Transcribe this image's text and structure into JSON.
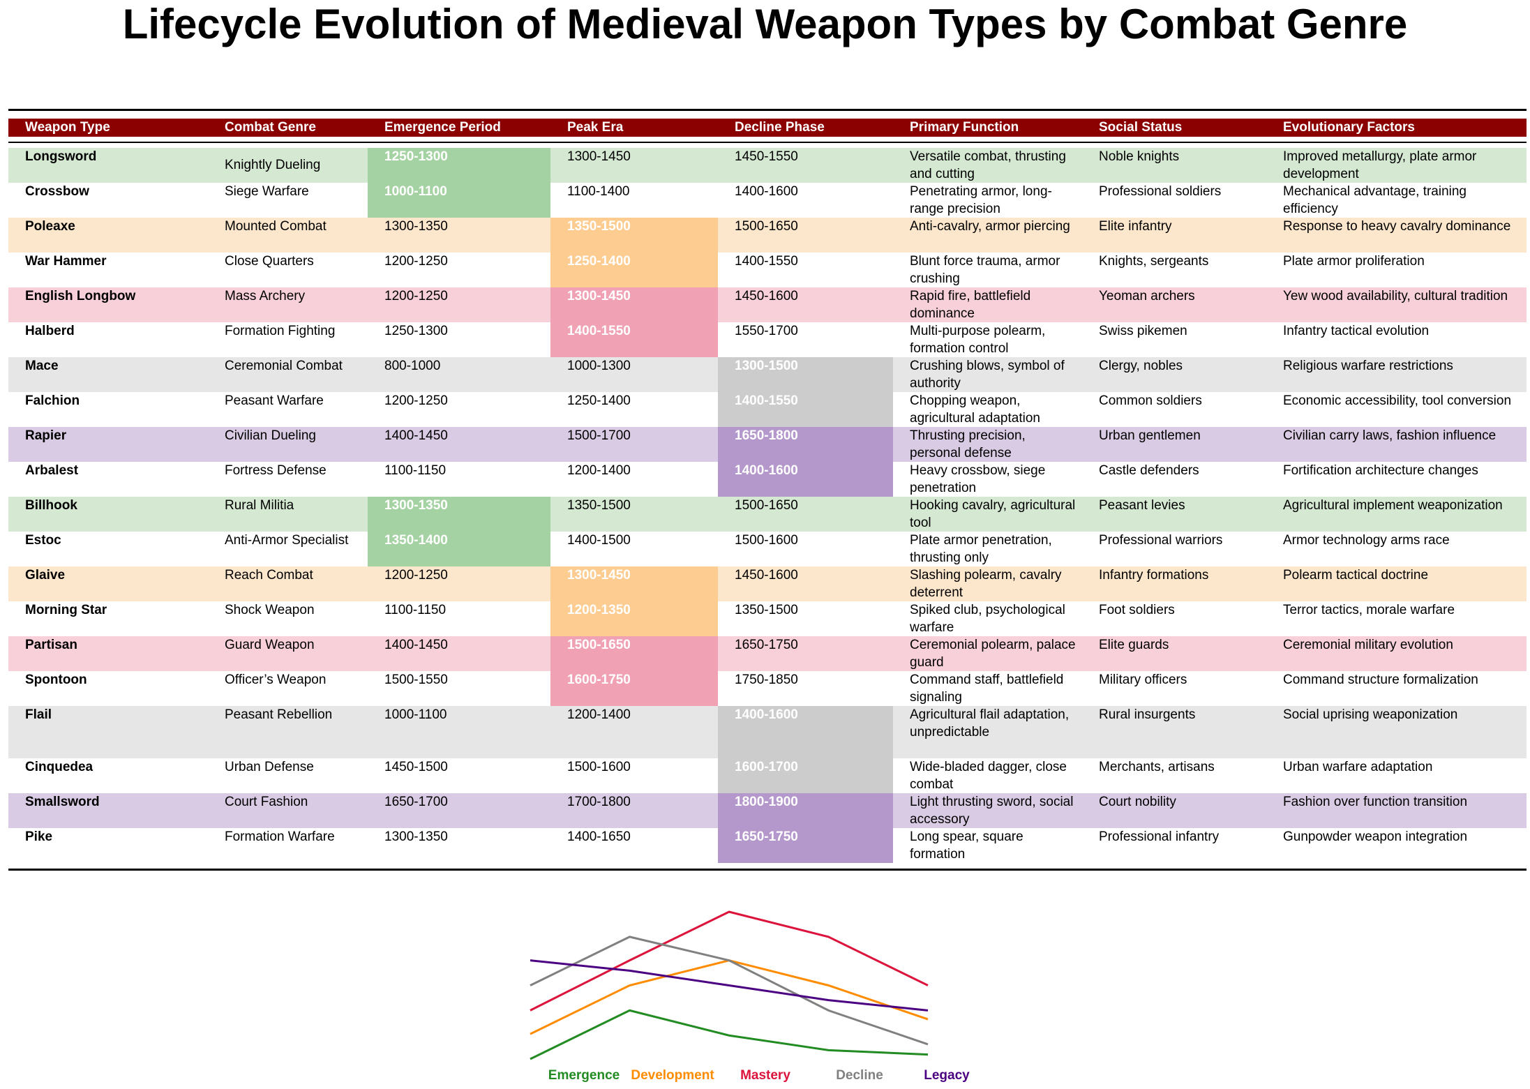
{
  "title": "Lifecycle Evolution of Medieval Weapon Types by Combat Genre",
  "columns": [
    "Weapon Type",
    "Combat Genre",
    "Emergence Period",
    "Peak Era",
    "Decline Phase",
    "Primary Function",
    "Social Status",
    "Evolutionary Factors"
  ],
  "colors": {
    "header": "#8b0000",
    "green_light": "#d4e8d2",
    "green_dark": "#a5d2a3",
    "orange_light": "#fde7cc",
    "orange_dark": "#fdcc91",
    "pink_light": "#f7d0d9",
    "pink_dark": "#f0a1b3",
    "gray_light": "#e6e6e6",
    "gray_dark": "#cccccc",
    "purple_light": "#dacbe4",
    "purple_dark": "#b497cb"
  },
  "rows": [
    {
      "weapon": "Longsword",
      "genre": "Knightly Dueling",
      "emergence": "1250-1300",
      "peak": "1300-1450",
      "decline": "1450-1550",
      "function": "Versatile combat, thrusting and cutting",
      "status": "Noble knights",
      "factors": "Improved metallurgy, plate armor development"
    },
    {
      "weapon": "Crossbow",
      "genre": "Siege Warfare",
      "emergence": "1000-1100",
      "peak": "1100-1400",
      "decline": "1400-1600",
      "function": "Penetrating armor, long-range precision",
      "status": "Professional soldiers",
      "factors": "Mechanical advantage, training efficiency"
    },
    {
      "weapon": "Poleaxe",
      "genre": "Mounted Combat",
      "emergence": "1300-1350",
      "peak": "1350-1500",
      "decline": "1500-1650",
      "function": "Anti-cavalry, armor piercing",
      "status": "Elite infantry",
      "factors": "Response to heavy cavalry dominance"
    },
    {
      "weapon": "War Hammer",
      "genre": "Close Quarters",
      "emergence": "1200-1250",
      "peak": "1250-1400",
      "decline": "1400-1550",
      "function": "Blunt force trauma, armor crushing",
      "status": "Knights, sergeants",
      "factors": "Plate armor proliferation"
    },
    {
      "weapon": "English Longbow",
      "genre": "Mass Archery",
      "emergence": "1200-1250",
      "peak": "1300-1450",
      "decline": "1450-1600",
      "function": "Rapid fire, battlefield dominance",
      "status": "Yeoman archers",
      "factors": "Yew wood availability, cultural tradition"
    },
    {
      "weapon": "Halberd",
      "genre": "Formation Fighting",
      "emergence": "1250-1300",
      "peak": "1400-1550",
      "decline": "1550-1700",
      "function": "Multi-purpose polearm, formation control",
      "status": "Swiss pikemen",
      "factors": "Infantry tactical evolution"
    },
    {
      "weapon": "Mace",
      "genre": "Ceremonial Combat",
      "emergence": "800-1000",
      "peak": "1000-1300",
      "decline": "1300-1500",
      "function": "Crushing blows, symbol of authority",
      "status": "Clergy, nobles",
      "factors": "Religious warfare restrictions"
    },
    {
      "weapon": "Falchion",
      "genre": "Peasant Warfare",
      "emergence": "1200-1250",
      "peak": "1250-1400",
      "decline": "1400-1550",
      "function": "Chopping weapon, agricultural adaptation",
      "status": "Common soldiers",
      "factors": "Economic accessibility, tool conversion"
    },
    {
      "weapon": "Rapier",
      "genre": "Civilian Dueling",
      "emergence": "1400-1450",
      "peak": "1500-1700",
      "decline": "1650-1800",
      "function": "Thrusting precision, personal defense",
      "status": "Urban gentlemen",
      "factors": "Civilian carry laws, fashion influence"
    },
    {
      "weapon": "Arbalest",
      "genre": "Fortress Defense",
      "emergence": "1100-1150",
      "peak": "1200-1400",
      "decline": "1400-1600",
      "function": "Heavy crossbow, siege penetration",
      "status": "Castle defenders",
      "factors": "Fortification architecture changes"
    },
    {
      "weapon": "Billhook",
      "genre": "Rural Militia",
      "emergence": "1300-1350",
      "peak": "1350-1500",
      "decline": "1500-1650",
      "function": "Hooking cavalry, agricultural tool",
      "status": "Peasant levies",
      "factors": "Agricultural implement weaponization"
    },
    {
      "weapon": "Estoc",
      "genre": "Anti-Armor Specialist",
      "emergence": "1350-1400",
      "peak": "1400-1500",
      "decline": "1500-1600",
      "function": "Plate armor penetration, thrusting only",
      "status": "Professional warriors",
      "factors": "Armor technology arms race"
    },
    {
      "weapon": "Glaive",
      "genre": "Reach Combat",
      "emergence": "1200-1250",
      "peak": "1300-1450",
      "decline": "1450-1600",
      "function": "Slashing polearm, cavalry deterrent",
      "status": "Infantry formations",
      "factors": "Polearm tactical doctrine"
    },
    {
      "weapon": "Morning Star",
      "genre": "Shock Weapon",
      "emergence": "1100-1150",
      "peak": "1200-1350",
      "decline": "1350-1500",
      "function": "Spiked club, psychological warfare",
      "status": "Foot soldiers",
      "factors": "Terror tactics, morale warfare"
    },
    {
      "weapon": "Partisan",
      "genre": "Guard Weapon",
      "emergence": "1400-1450",
      "peak": "1500-1650",
      "decline": "1650-1750",
      "function": "Ceremonial polearm, palace guard",
      "status": "Elite guards",
      "factors": "Ceremonial military evolution"
    },
    {
      "weapon": "Spontoon",
      "genre": "Officer’s Weapon",
      "emergence": "1500-1550",
      "peak": "1600-1750",
      "decline": "1750-1850",
      "function": "Command staff, battlefield signaling",
      "status": "Military officers",
      "factors": "Command structure formalization"
    },
    {
      "weapon": "Flail",
      "genre": "Peasant Rebellion",
      "emergence": "1000-1100",
      "peak": "1200-1400",
      "decline": "1400-1600",
      "function": "Agricultural flail adaptation, unpredictable",
      "status": "Rural insurgents",
      "factors": "Social uprising weaponization"
    },
    {
      "weapon": "Cinquedea",
      "genre": "Urban Defense",
      "emergence": "1450-1500",
      "peak": "1500-1600",
      "decline": "1600-1700",
      "function": "Wide-bladed dagger, close combat",
      "status": "Merchants, artisans",
      "factors": "Urban warfare adaptation"
    },
    {
      "weapon": "Smallsword",
      "genre": "Court Fashion",
      "emergence": "1650-1700",
      "peak": "1700-1800",
      "decline": "1800-1900",
      "function": "Light thrusting sword, social accessory",
      "status": "Court nobility",
      "factors": "Fashion over function transition"
    },
    {
      "weapon": "Pike",
      "genre": "Formation Warfare",
      "emergence": "1300-1350",
      "peak": "1400-1650",
      "decline": "1650-1750",
      "function": "Long spear, square formation",
      "status": "Professional infantry",
      "factors": "Gunpowder weapon integration"
    }
  ],
  "chart_data": {
    "type": "line",
    "title": "",
    "xlabel": "",
    "ylabel": "",
    "grid": false,
    "legend_placement": "bottom",
    "x": [
      0,
      1,
      2,
      3,
      4
    ],
    "ylim": [
      0,
      1
    ],
    "series": [
      {
        "name": "Emergence",
        "color": "#228b22",
        "values": [
          0.0,
          0.33,
          0.16,
          0.06,
          0.03
        ]
      },
      {
        "name": "Development",
        "color": "#ff8c00",
        "values": [
          0.17,
          0.5,
          0.67,
          0.5,
          0.27
        ]
      },
      {
        "name": "Mastery",
        "color": "#dc143c",
        "values": [
          0.33,
          0.67,
          1.0,
          0.83,
          0.5
        ]
      },
      {
        "name": "Decline",
        "color": "#808080",
        "values": [
          0.5,
          0.83,
          0.67,
          0.33,
          0.1
        ]
      },
      {
        "name": "Legacy",
        "color": "#4b0082",
        "values": [
          0.67,
          0.6,
          0.5,
          0.4,
          0.33
        ]
      }
    ]
  }
}
